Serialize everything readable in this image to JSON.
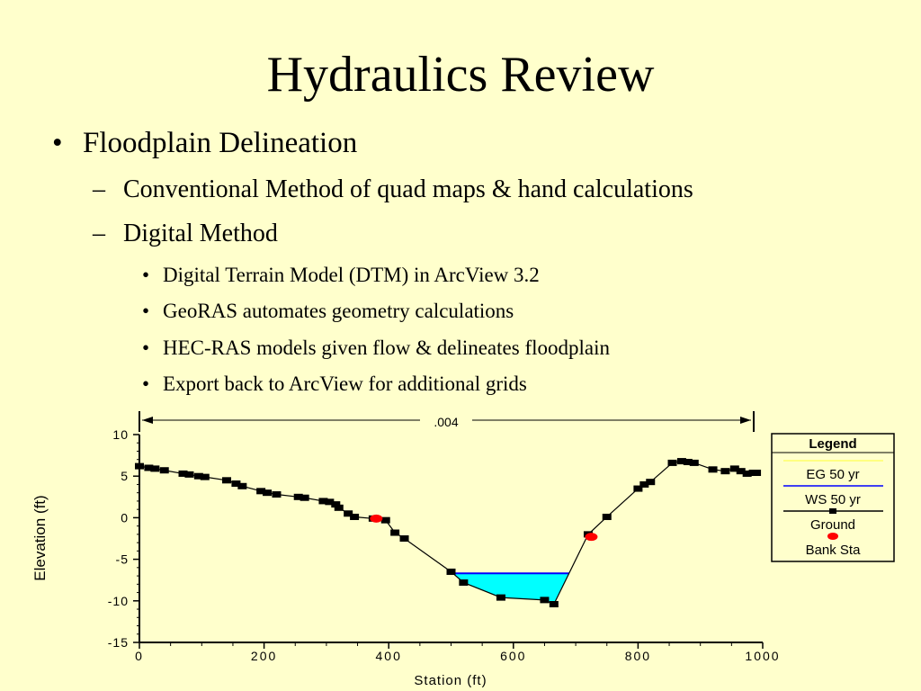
{
  "slide": {
    "title": "Hydraulics Review",
    "bullets": [
      {
        "text": "Floodplain Delineation",
        "children": [
          {
            "text": "Conventional Method of quad maps & hand calculations"
          },
          {
            "text": "Digital Method",
            "children": [
              "Digital Terrain Model (DTM) in ArcView 3.2",
              "GeoRAS automates geometry calculations",
              "HEC-RAS models given flow & delineates floodplain",
              "Export back to ArcView for additional grids"
            ]
          }
        ]
      }
    ],
    "markers": {
      "level1": "•",
      "level2": "–",
      "level3": "•"
    }
  },
  "chart_data": {
    "type": "line",
    "xlabel": "Station (ft)",
    "ylabel": "Elevation (ft)",
    "xlim": [
      0,
      1000
    ],
    "ylim": [
      -15,
      10
    ],
    "xticks": [
      0,
      200,
      400,
      600,
      800,
      1000
    ],
    "yticks": [
      10,
      5,
      0,
      -5,
      -10,
      -15
    ],
    "reach_label": ".004",
    "legend": {
      "title": "Legend",
      "entries": [
        "EG 50 yr",
        "WS 50 yr",
        "Ground",
        "Bank Sta"
      ],
      "placement": "right"
    },
    "water_surface": -6.7,
    "series": [
      {
        "name": "Ground",
        "x": [
          0,
          15,
          25,
          40,
          70,
          80,
          95,
          105,
          140,
          155,
          165,
          195,
          205,
          220,
          255,
          265,
          295,
          305,
          315,
          320,
          335,
          345,
          375,
          395,
          410,
          425,
          500,
          520,
          580,
          650,
          665,
          720,
          750,
          800,
          810,
          820,
          855,
          870,
          880,
          890,
          920,
          940,
          955,
          965,
          975,
          985,
          990
        ],
        "y": [
          6.2,
          6.0,
          5.9,
          5.7,
          5.3,
          5.2,
          5.0,
          4.9,
          4.5,
          4.1,
          3.8,
          3.2,
          3.0,
          2.8,
          2.5,
          2.4,
          2.0,
          1.9,
          1.6,
          1.2,
          0.5,
          0.1,
          -0.1,
          -0.3,
          -1.8,
          -2.5,
          -6.5,
          -7.8,
          -9.6,
          -9.9,
          -10.4,
          -2.0,
          0.1,
          3.5,
          4.0,
          4.3,
          6.6,
          6.8,
          6.7,
          6.6,
          5.8,
          5.6,
          5.9,
          5.6,
          5.3,
          5.4,
          5.4
        ]
      },
      {
        "name": "Bank Sta",
        "x": [
          380,
          725
        ],
        "y": [
          -0.1,
          -2.3
        ]
      }
    ],
    "colors": {
      "background": "#FFFFCC",
      "water": "#00FFFF",
      "ws_line": "#0000FF",
      "ground": "#000000",
      "bank": "#FF0000",
      "eg_line": "#FFFF66"
    }
  }
}
